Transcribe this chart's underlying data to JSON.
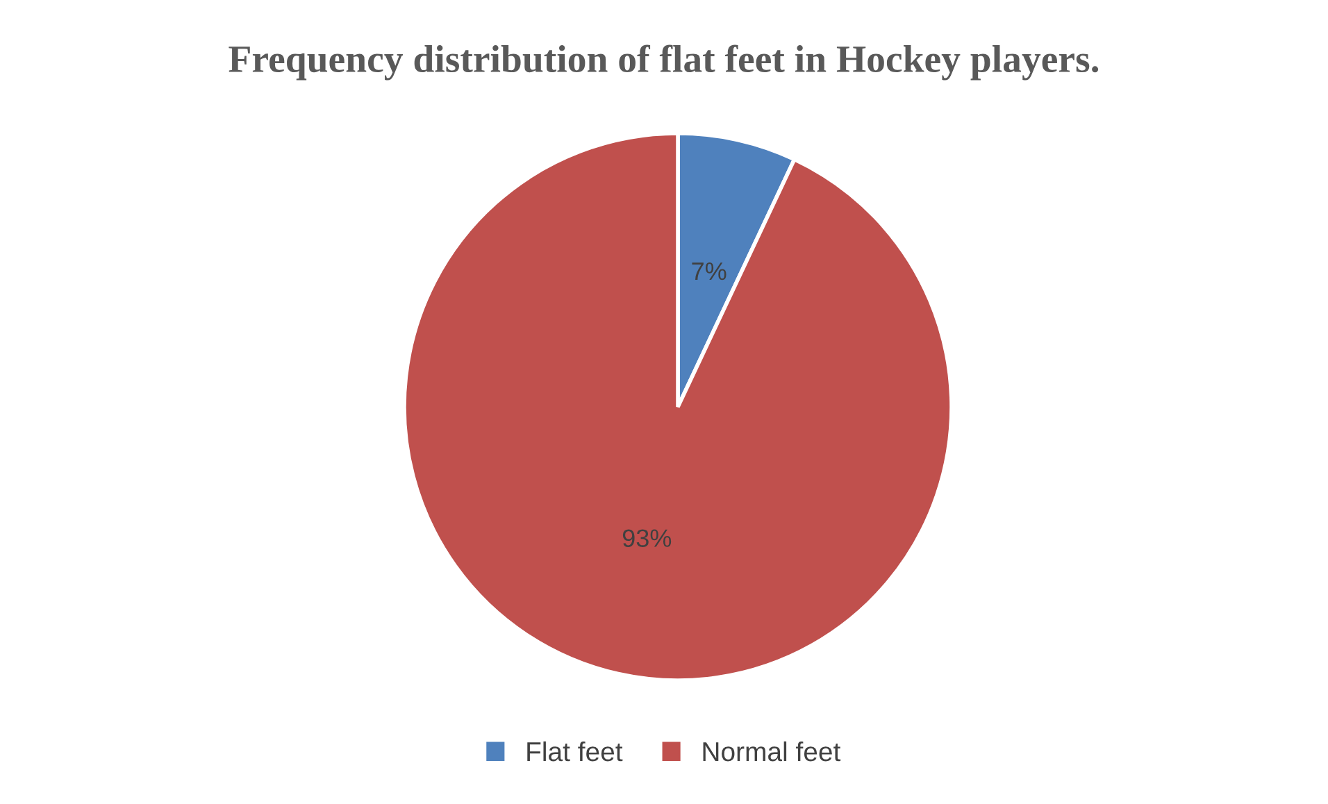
{
  "chart_data": {
    "type": "pie",
    "title": "Frequency distribution of flat feet in Hockey players.",
    "categories": [
      "Flat feet",
      "Normal feet"
    ],
    "values": [
      7,
      93
    ],
    "colors": [
      "#4f81bd",
      "#c0504d"
    ],
    "value_labels": [
      "7%",
      "93%"
    ],
    "legend": "bottom"
  }
}
